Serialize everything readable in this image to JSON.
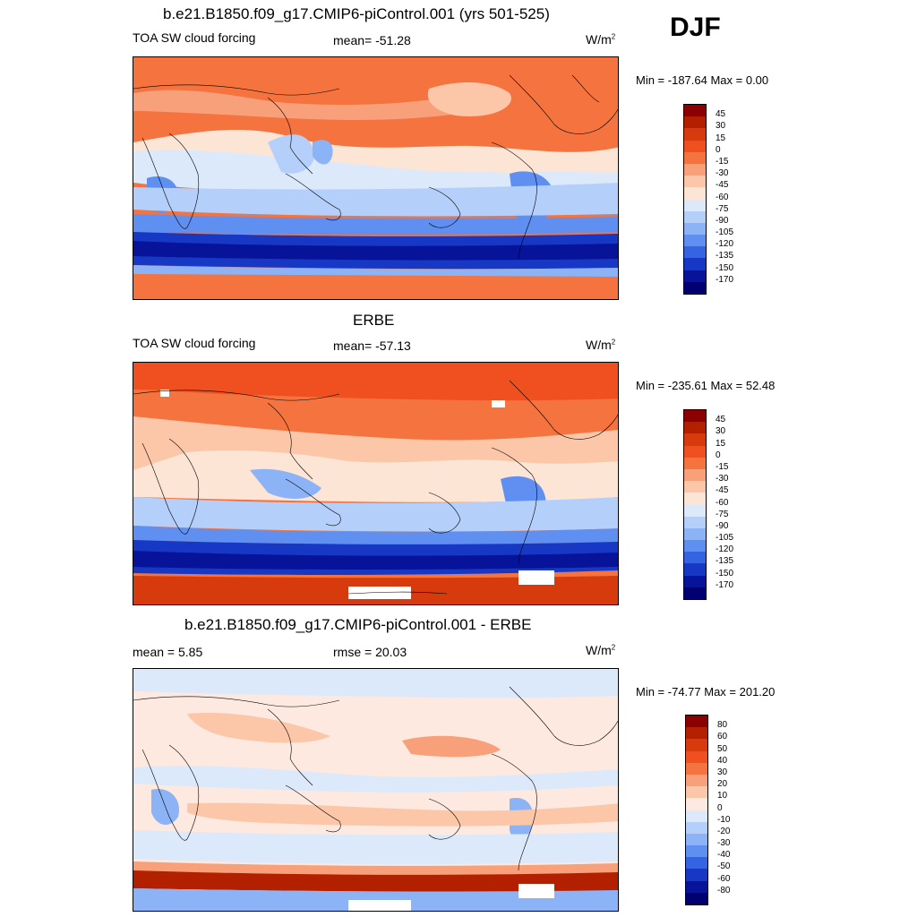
{
  "season": "DJF",
  "panels": [
    {
      "title": "b.e21.B1850.f09_g17.CMIP6-piControl.001 (yrs 501-525)",
      "left_label": "TOA SW cloud forcing",
      "center_label": "mean= -51.28",
      "unit": "W/m",
      "unit_sup": "2",
      "minmax": "Min = -187.64 Max =    0.00",
      "colorbar_labels": [
        "45",
        "30",
        "15",
        "0",
        "-15",
        "-30",
        "-45",
        "-60",
        "-75",
        "-90",
        "-105",
        "-120",
        "-135",
        "-150",
        "-170"
      ],
      "colorbar_colors": [
        "#8b0000",
        "#b22000",
        "#d63a0d",
        "#f05020",
        "#f4733e",
        "#f7a07a",
        "#fbc7a8",
        "#fde5d5",
        "#dce9fb",
        "#b4d0fa",
        "#8bb3f6",
        "#5f8ff0",
        "#3464e2",
        "#1738c4",
        "#07149a",
        "#000072"
      ]
    },
    {
      "title": "ERBE",
      "left_label": "TOA SW cloud forcing",
      "center_label": "mean= -57.13",
      "unit": "W/m",
      "unit_sup": "2",
      "minmax": "Min = -235.61 Max =  52.48",
      "colorbar_labels": [
        "45",
        "30",
        "15",
        "0",
        "-15",
        "-30",
        "-45",
        "-60",
        "-75",
        "-90",
        "-105",
        "-120",
        "-135",
        "-150",
        "-170"
      ],
      "colorbar_colors": [
        "#8b0000",
        "#b22000",
        "#d63a0d",
        "#f05020",
        "#f4733e",
        "#f7a07a",
        "#fbc7a8",
        "#fde5d5",
        "#dce9fb",
        "#b4d0fa",
        "#8bb3f6",
        "#5f8ff0",
        "#3464e2",
        "#1738c4",
        "#07149a",
        "#000072"
      ]
    },
    {
      "title": "b.e21.B1850.f09_g17.CMIP6-piControl.001 - ERBE",
      "left_label": "mean =   5.85",
      "center_label": "rmse =  20.03",
      "unit": "W/m",
      "unit_sup": "2",
      "minmax": "Min = -74.77 Max = 201.20",
      "colorbar_labels": [
        "80",
        "60",
        "50",
        "40",
        "30",
        "20",
        "10",
        "0",
        "-10",
        "-20",
        "-30",
        "-40",
        "-50",
        "-60",
        "-80"
      ],
      "colorbar_colors": [
        "#8b0000",
        "#b22000",
        "#d63a0d",
        "#f05020",
        "#f4733e",
        "#f7a07a",
        "#fbc7a8",
        "#fde9df",
        "#dce9fb",
        "#b4d0fa",
        "#8bb3f6",
        "#5f8ff0",
        "#3464e2",
        "#1738c4",
        "#07149a",
        "#000072"
      ]
    }
  ]
}
